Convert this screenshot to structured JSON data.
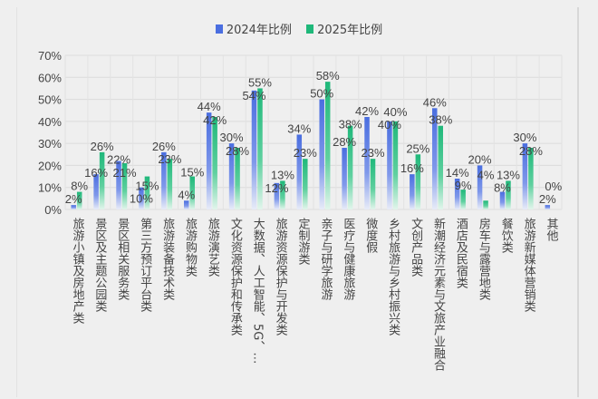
{
  "chart_data": {
    "type": "bar",
    "categories": [
      "旅游小镇及房地产类",
      "景区及主题公园类",
      "景区相关服务类",
      "第三方预订平台类",
      "旅游装备技术类",
      "旅游购物类",
      "旅游演艺类",
      "文化资源保护和传承类",
      "大数据、人工智能、5G、…",
      "旅游资源保护与开发类",
      "定制游类",
      "亲子与研学旅游",
      "医疗与健康旅游",
      "微度假",
      "乡村旅游与乡村振兴类",
      "文创产品类",
      "新潮经济元素与文旅产业融合",
      "酒店及民宿类",
      "房车与露营地类",
      "餐饮类",
      "旅游新媒体营销类",
      "其他"
    ],
    "series": [
      {
        "name": "2024年比例",
        "color": "#4a6ee0",
        "values": [
          2,
          16,
          22,
          10,
          26,
          4,
          44,
          30,
          54,
          12,
          34,
          50,
          28,
          42,
          40,
          16,
          46,
          14,
          20,
          8,
          30,
          2
        ]
      },
      {
        "name": "2025年比例",
        "color": "#1fb87a",
        "values": [
          8,
          26,
          21,
          15,
          23,
          15,
          42,
          28,
          55,
          13,
          23,
          58,
          38,
          23,
          40,
          25,
          38,
          9,
          4,
          13,
          28,
          0
        ]
      }
    ],
    "yticks": [
      "0%",
      "10%",
      "20%",
      "30%",
      "40%",
      "50%",
      "60%",
      "70%"
    ],
    "ylim": [
      0,
      70
    ],
    "grid": true,
    "legend": "top-center",
    "title": "",
    "xlabel": "",
    "ylabel": ""
  }
}
